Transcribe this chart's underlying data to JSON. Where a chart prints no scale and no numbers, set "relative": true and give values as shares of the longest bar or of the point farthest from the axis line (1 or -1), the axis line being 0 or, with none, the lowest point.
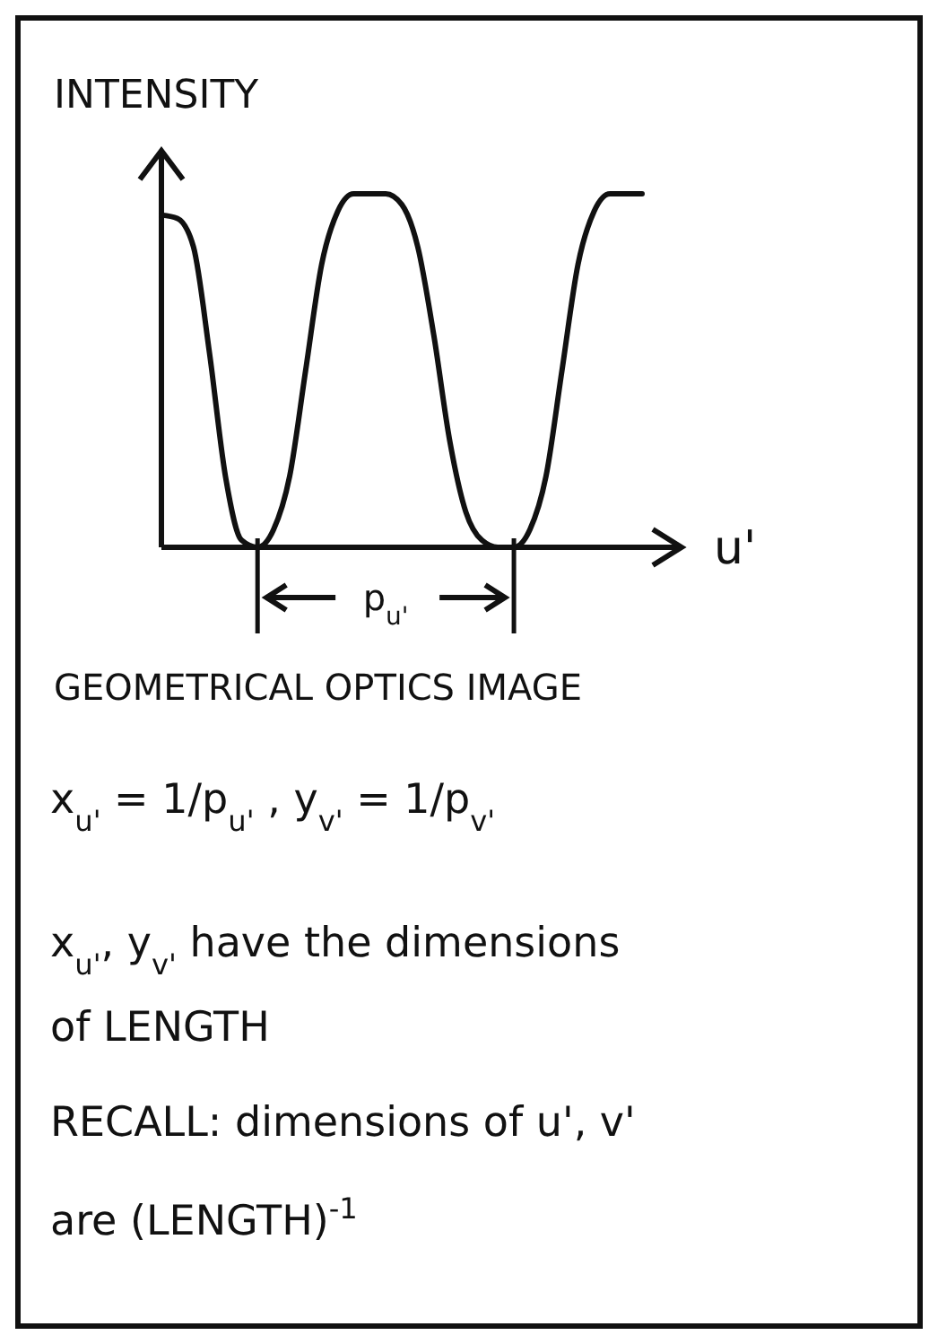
{
  "chart_data": {
    "type": "line",
    "relative": true,
    "ylabel": "INTENSITY",
    "xlabel": "u'",
    "categories": [
      null,
      null,
      null,
      null,
      null,
      null,
      null,
      null,
      null,
      null,
      null,
      null,
      null,
      null,
      null,
      null,
      null,
      null,
      null,
      null,
      null,
      null,
      null,
      null,
      null,
      null,
      null,
      null,
      null,
      null,
      null
    ],
    "series": [
      {
        "color": "#111111",
        "values": [
          0.94,
          0.93,
          0.85,
          0.55,
          0.2,
          0.02,
          0,
          0.05,
          0.2,
          0.5,
          0.8,
          0.95,
          1,
          1,
          1,
          0.97,
          0.85,
          0.6,
          0.3,
          0.1,
          0.02,
          0,
          0,
          0.05,
          0.2,
          0.5,
          0.8,
          0.95,
          1,
          1,
          1
        ]
      }
    ],
    "marker": "none",
    "line_style": "solid",
    "grid": false,
    "annotations": [
      "p$_{u'}$",
      "GEOMETRICAL OPTICS IMAGE",
      "x$_{u'}$ = 1/p$_{u'}$ ,  y$_{v'}$ = 1/p$_{v'}$",
      "x$_{u'}$, y$_{v'}$ have the dimensions",
      "of LENGTH",
      "RECALL: dimensions of u', v'",
      "are (LENGTH)$^{-1}$"
    ]
  }
}
